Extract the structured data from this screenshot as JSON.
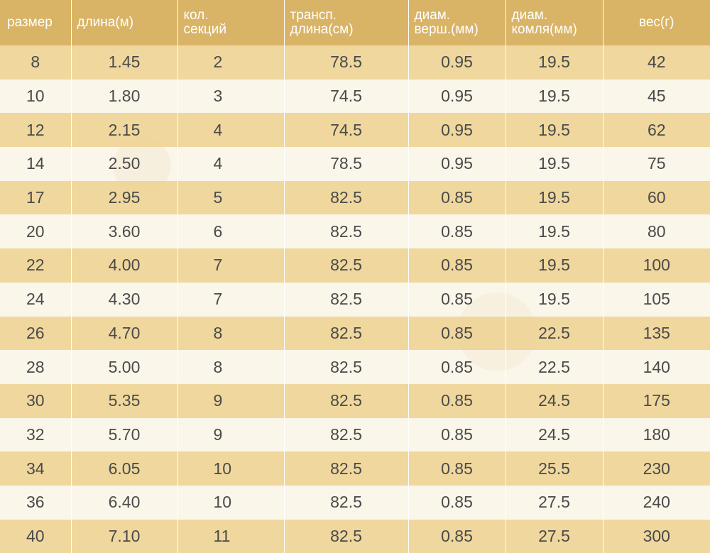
{
  "headers": [
    "размер",
    "длина(м)",
    "кол.\nсекций",
    "трансп.\nдлина(см)",
    "диам.\nверш.(мм)",
    "диам.\nкомля(мм)",
    "вес(г)"
  ],
  "rows": [
    [
      "8",
      "1.45",
      "2",
      "78.5",
      "0.95",
      "19.5",
      "42"
    ],
    [
      "10",
      "1.80",
      "3",
      "74.5",
      "0.95",
      "19.5",
      "45"
    ],
    [
      "12",
      "2.15",
      "4",
      "74.5",
      "0.95",
      "19.5",
      "62"
    ],
    [
      "14",
      "2.50",
      "4",
      "78.5",
      "0.95",
      "19.5",
      "75"
    ],
    [
      "17",
      "2.95",
      "5",
      "82.5",
      "0.85",
      "19.5",
      "60"
    ],
    [
      "20",
      "3.60",
      "6",
      "82.5",
      "0.85",
      "19.5",
      "80"
    ],
    [
      "22",
      "4.00",
      "7",
      "82.5",
      "0.85",
      "19.5",
      "100"
    ],
    [
      "24",
      "4.30",
      "7",
      "82.5",
      "0.85",
      "19.5",
      "105"
    ],
    [
      "26",
      "4.70",
      "8",
      "82.5",
      "0.85",
      "22.5",
      "135"
    ],
    [
      "28",
      "5.00",
      "8",
      "82.5",
      "0.85",
      "22.5",
      "140"
    ],
    [
      "30",
      "5.35",
      "9",
      "82.5",
      "0.85",
      "24.5",
      "175"
    ],
    [
      "32",
      "5.70",
      "9",
      "82.5",
      "0.85",
      "24.5",
      "180"
    ],
    [
      "34",
      "6.05",
      "10",
      "82.5",
      "0.85",
      "25.5",
      "230"
    ],
    [
      "36",
      "6.40",
      "10",
      "82.5",
      "0.85",
      "27.5",
      "240"
    ],
    [
      "40",
      "7.10",
      "11",
      "82.5",
      "0.85",
      "27.5",
      "300"
    ]
  ],
  "colors": {
    "header_bg": "#d9b467",
    "stripe_bg": "#eed496",
    "page_bg": "#fbf6ea",
    "text": "#4a4a4a"
  }
}
